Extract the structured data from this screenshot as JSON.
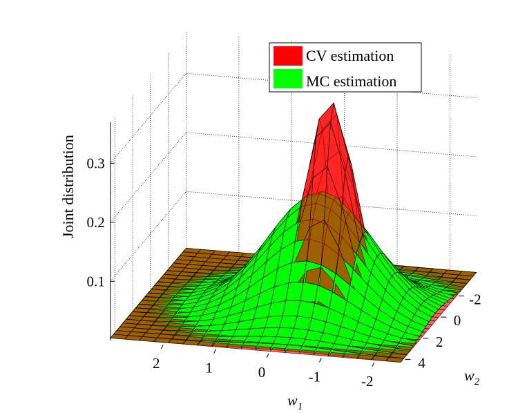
{
  "chart_data": {
    "type": "surface",
    "title": "",
    "xlabel": "w1",
    "ylabel": "w2",
    "zlabel": "Joint distribution",
    "xlim": [
      -2.5,
      3
    ],
    "ylim": [
      -4,
      4.5
    ],
    "zlim": [
      0,
      0.37
    ],
    "xticks": [
      2,
      1,
      0,
      -1,
      -2
    ],
    "yticks": [
      -2,
      0,
      2,
      4
    ],
    "zticks": [
      0.1,
      0.2,
      0.3
    ],
    "grid": true,
    "legend_position": "top-right",
    "series": [
      {
        "name": "CV estimation",
        "color": "#ff0000",
        "peak": 0.36,
        "mean_w1": -0.5,
        "mean_w2": 0.6,
        "std_w1": 0.45,
        "std_w2": 0.9
      },
      {
        "name": "MC estimation",
        "color": "#00ff00",
        "peak": 0.2,
        "mean_w1": -0.3,
        "mean_w2": 0.5,
        "std_w1": 0.95,
        "std_w2": 1.4
      }
    ]
  },
  "labels": {
    "zlabel": "Joint distribution",
    "xlabel_base": "w",
    "xlabel_sub": "1",
    "ylabel_base": "w",
    "ylabel_sub": "2"
  },
  "legend": [
    "CV estimation",
    "MC estimation"
  ]
}
